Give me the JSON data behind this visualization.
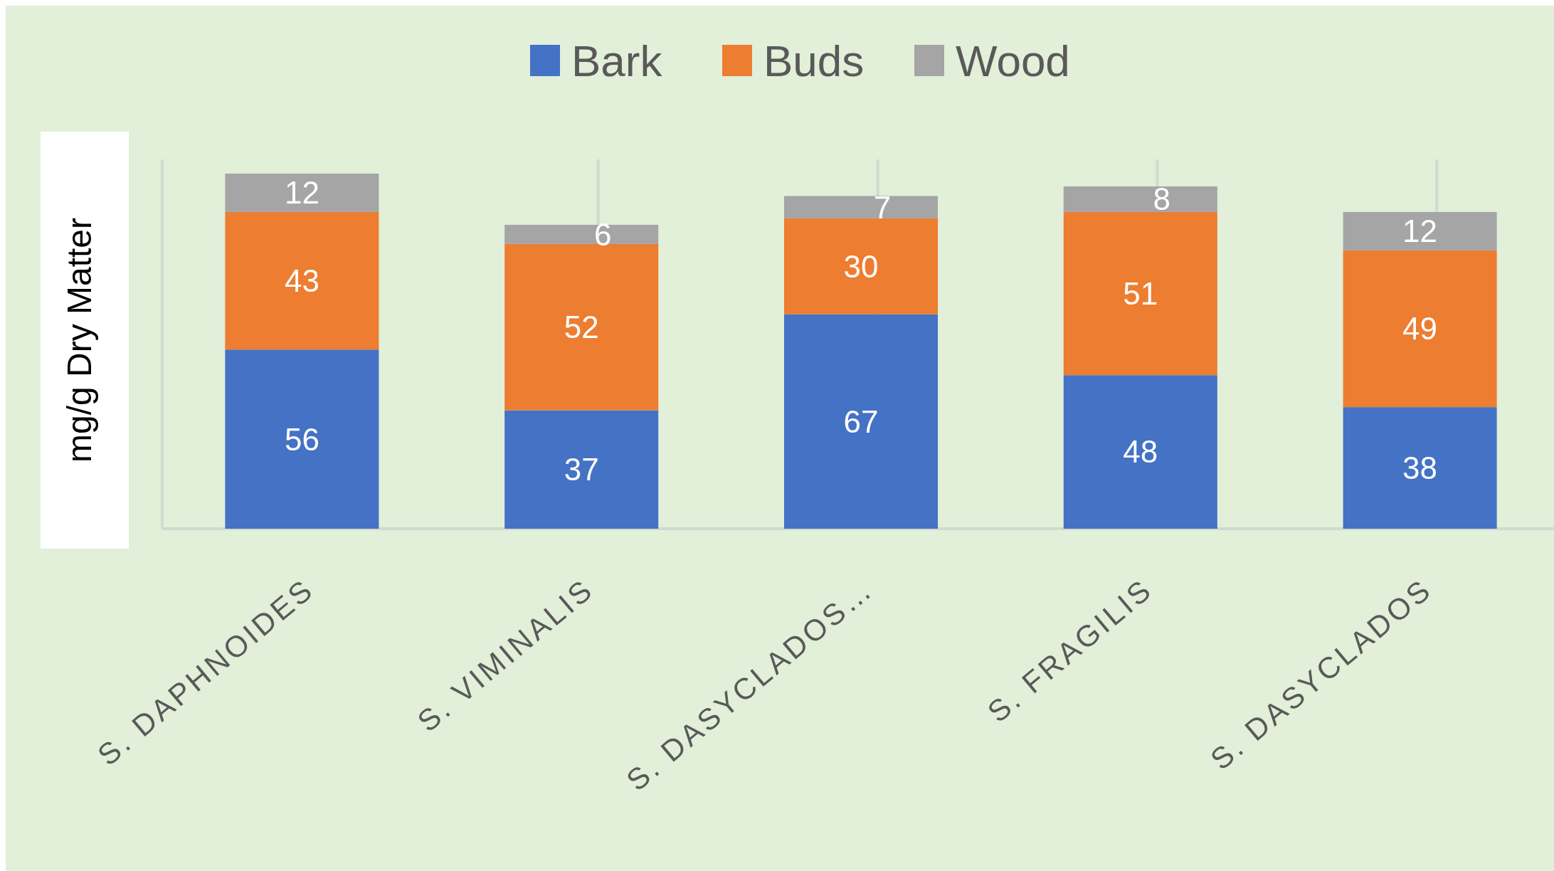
{
  "chart_data": {
    "type": "bar",
    "stacked": true,
    "ylabel": "mg/g Dry Matter",
    "categories": [
      "S. DAPHNOIDES",
      "S. VIMINALIS",
      "S. DASYCLADOS…",
      "S. FRAGILIS",
      "S. DASYCLADOS"
    ],
    "series": [
      {
        "name": "Bark",
        "color": "#4472c4",
        "values": [
          56,
          37,
          67,
          48,
          38
        ]
      },
      {
        "name": "Buds",
        "color": "#ed7d31",
        "values": [
          43,
          52,
          30,
          51,
          49
        ]
      },
      {
        "name": "Wood",
        "color": "#a5a5a5",
        "values": [
          12,
          6,
          7,
          8,
          12
        ]
      }
    ],
    "data_labels": true,
    "legend": "top",
    "grid": "x"
  }
}
